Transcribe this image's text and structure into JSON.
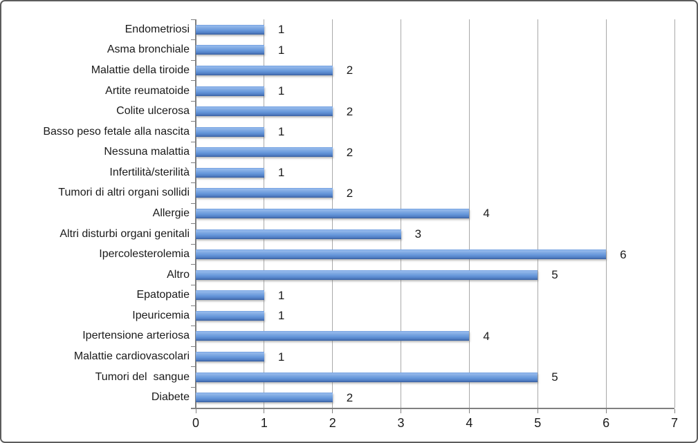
{
  "chart_data": {
    "type": "bar",
    "orientation": "horizontal",
    "title": "",
    "xlabel": "",
    "ylabel": "",
    "categories": [
      "Endometriosi",
      "Asma bronchiale",
      "Malattie della tiroide",
      "Artite reumatoide",
      "Colite ulcerosa",
      "Basso peso fetale alla nascita",
      "Nessuna malattia",
      "Infertilità/sterilità",
      "Tumori di altri organi sollidi",
      "Allergie",
      "Altri disturbi organi genitali",
      "Ipercolesterolemia",
      "Altro",
      "Epatopatie",
      "Ipeuricemia",
      "Ipertensione arteriosa",
      "Malattie cardiovascolari",
      "Tumori del  sangue",
      "Diabete"
    ],
    "values": [
      1,
      1,
      2,
      1,
      2,
      1,
      2,
      1,
      2,
      4,
      3,
      6,
      5,
      1,
      1,
      4,
      1,
      5,
      2
    ],
    "xlim": [
      0,
      7
    ],
    "xticks": [
      0,
      1,
      2,
      3,
      4,
      5,
      6,
      7
    ],
    "value_labels_shown": true,
    "grid": "vertical-gridlines-on",
    "legend_position": "none",
    "style": {
      "bar_color_highlight": "#96baec",
      "bar_color_mid": "#6597da",
      "bar_color_dark": "#38619f",
      "gridline_color": "#a8a8a8",
      "axis_color": "#7f7f7f",
      "text_color": "#1a1a1a",
      "frame_border_color": "#5c5c5c",
      "background_color": "#ffffff"
    }
  }
}
